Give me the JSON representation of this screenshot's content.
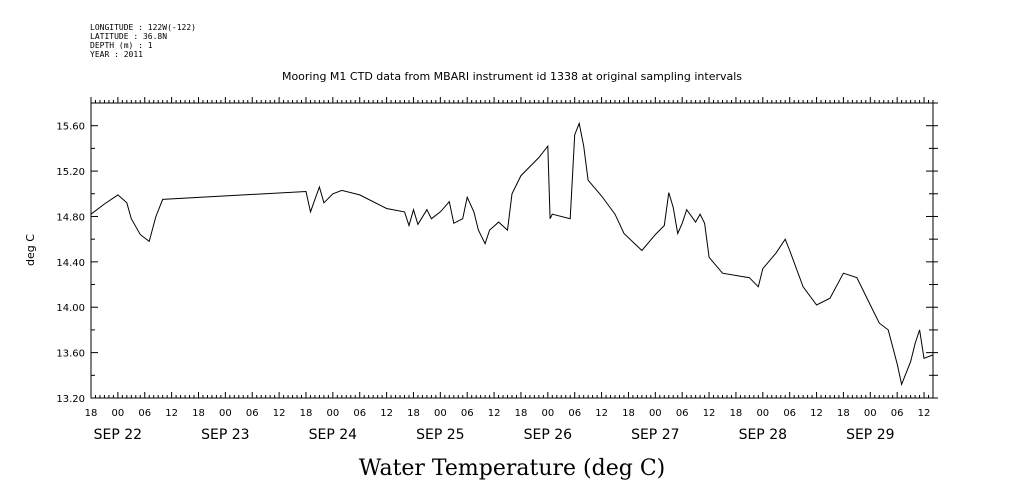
{
  "header": {
    "longitude": "LONGITUDE : 122W(-122)",
    "latitude": "LATITUDE : 36.8N",
    "depth": "DEPTH (m) : 1",
    "year": "YEAR : 2011"
  },
  "chart_data": {
    "type": "line",
    "title": "Mooring M1 CTD data from MBARI instrument id 1338 at original sampling intervals",
    "xlabel": "Water Temperature (deg C)",
    "ylabel": "deg C",
    "ylim": [
      13.2,
      15.8
    ],
    "yticks": [
      "13.20",
      "13.60",
      "14.00",
      "14.40",
      "14.80",
      "15.20",
      "15.60"
    ],
    "xlim": [
      "2011-09-21T18:00",
      "2011-09-29T14:00"
    ],
    "hour_ticks": [
      "18",
      "00",
      "06",
      "12",
      "18",
      "00",
      "06",
      "12",
      "18",
      "00",
      "06",
      "12",
      "18",
      "00",
      "06",
      "12",
      "18",
      "00",
      "06",
      "12",
      "18",
      "00",
      "06",
      "12",
      "18",
      "00",
      "06",
      "12",
      "18",
      "00",
      "06",
      "12"
    ],
    "date_labels": [
      "SEP 22",
      "SEP 23",
      "SEP 24",
      "SEP 25",
      "SEP 26",
      "SEP 27",
      "SEP 28",
      "SEP 29"
    ],
    "grid": false,
    "series": [
      {
        "color": "#000000",
        "points": [
          [
            "2011-09-21T18:00",
            14.82
          ],
          [
            "2011-09-21T21:00",
            14.91
          ],
          [
            "2011-09-22T00:00",
            14.99
          ],
          [
            "2011-09-22T02:00",
            14.92
          ],
          [
            "2011-09-22T03:00",
            14.78
          ],
          [
            "2011-09-22T05:00",
            14.64
          ],
          [
            "2011-09-22T07:00",
            14.58
          ],
          [
            "2011-09-22T08:30",
            14.8
          ],
          [
            "2011-09-22T10:00",
            14.95
          ],
          [
            "2011-09-23T18:00",
            15.02
          ],
          [
            "2011-09-23T19:00",
            14.84
          ],
          [
            "2011-09-23T20:00",
            14.95
          ],
          [
            "2011-09-23T21:00",
            15.06
          ],
          [
            "2011-09-23T22:00",
            14.92
          ],
          [
            "2011-09-24T00:00",
            15.0
          ],
          [
            "2011-09-24T02:00",
            15.03
          ],
          [
            "2011-09-24T06:00",
            14.99
          ],
          [
            "2011-09-24T12:00",
            14.87
          ],
          [
            "2011-09-24T16:00",
            14.84
          ],
          [
            "2011-09-24T17:00",
            14.72
          ],
          [
            "2011-09-24T18:00",
            14.86
          ],
          [
            "2011-09-24T19:00",
            14.73
          ],
          [
            "2011-09-24T21:00",
            14.86
          ],
          [
            "2011-09-24T22:00",
            14.78
          ],
          [
            "2011-09-25T00:00",
            14.84
          ],
          [
            "2011-09-25T02:00",
            14.93
          ],
          [
            "2011-09-25T03:00",
            14.74
          ],
          [
            "2011-09-25T05:00",
            14.78
          ],
          [
            "2011-09-25T06:00",
            14.97
          ],
          [
            "2011-09-25T07:30",
            14.84
          ],
          [
            "2011-09-25T08:30",
            14.68
          ],
          [
            "2011-09-25T10:00",
            14.56
          ],
          [
            "2011-09-25T11:00",
            14.68
          ],
          [
            "2011-09-25T13:00",
            14.75
          ],
          [
            "2011-09-25T15:00",
            14.68
          ],
          [
            "2011-09-25T16:00",
            15.0
          ],
          [
            "2011-09-25T18:00",
            15.16
          ],
          [
            "2011-09-25T22:00",
            15.32
          ],
          [
            "2011-09-26T00:00",
            15.42
          ],
          [
            "2011-09-26T00:30",
            14.78
          ],
          [
            "2011-09-26T01:00",
            14.82
          ],
          [
            "2011-09-26T05:00",
            14.78
          ],
          [
            "2011-09-26T06:00",
            15.52
          ],
          [
            "2011-09-26T07:00",
            15.62
          ],
          [
            "2011-09-26T08:00",
            15.42
          ],
          [
            "2011-09-26T09:00",
            15.12
          ],
          [
            "2011-09-26T12:00",
            14.98
          ],
          [
            "2011-09-26T15:00",
            14.82
          ],
          [
            "2011-09-26T17:00",
            14.65
          ],
          [
            "2011-09-26T21:00",
            14.5
          ],
          [
            "2011-09-27T00:00",
            14.64
          ],
          [
            "2011-09-27T02:00",
            14.72
          ],
          [
            "2011-09-27T03:00",
            15.01
          ],
          [
            "2011-09-27T04:00",
            14.88
          ],
          [
            "2011-09-27T05:00",
            14.65
          ],
          [
            "2011-09-27T06:00",
            14.74
          ],
          [
            "2011-09-27T07:00",
            14.86
          ],
          [
            "2011-09-27T09:00",
            14.75
          ],
          [
            "2011-09-27T10:00",
            14.82
          ],
          [
            "2011-09-27T11:00",
            14.74
          ],
          [
            "2011-09-27T12:00",
            14.44
          ],
          [
            "2011-09-27T15:00",
            14.3
          ],
          [
            "2011-09-27T21:00",
            14.26
          ],
          [
            "2011-09-27T23:00",
            14.18
          ],
          [
            "2011-09-28T00:00",
            14.34
          ],
          [
            "2011-09-28T03:00",
            14.48
          ],
          [
            "2011-09-28T05:00",
            14.6
          ],
          [
            "2011-09-28T06:00",
            14.5
          ],
          [
            "2011-09-28T09:00",
            14.18
          ],
          [
            "2011-09-28T12:00",
            14.02
          ],
          [
            "2011-09-28T15:00",
            14.08
          ],
          [
            "2011-09-28T18:00",
            14.3
          ],
          [
            "2011-09-28T21:00",
            14.26
          ],
          [
            "2011-09-29T00:00",
            14.02
          ],
          [
            "2011-09-29T02:00",
            13.86
          ],
          [
            "2011-09-29T04:00",
            13.8
          ],
          [
            "2011-09-29T06:00",
            13.5
          ],
          [
            "2011-09-29T07:00",
            13.32
          ],
          [
            "2011-09-29T09:00",
            13.52
          ],
          [
            "2011-09-29T10:00",
            13.68
          ],
          [
            "2011-09-29T11:00",
            13.8
          ],
          [
            "2011-09-29T12:00",
            13.55
          ],
          [
            "2011-09-29T14:00",
            13.58
          ]
        ]
      }
    ]
  }
}
